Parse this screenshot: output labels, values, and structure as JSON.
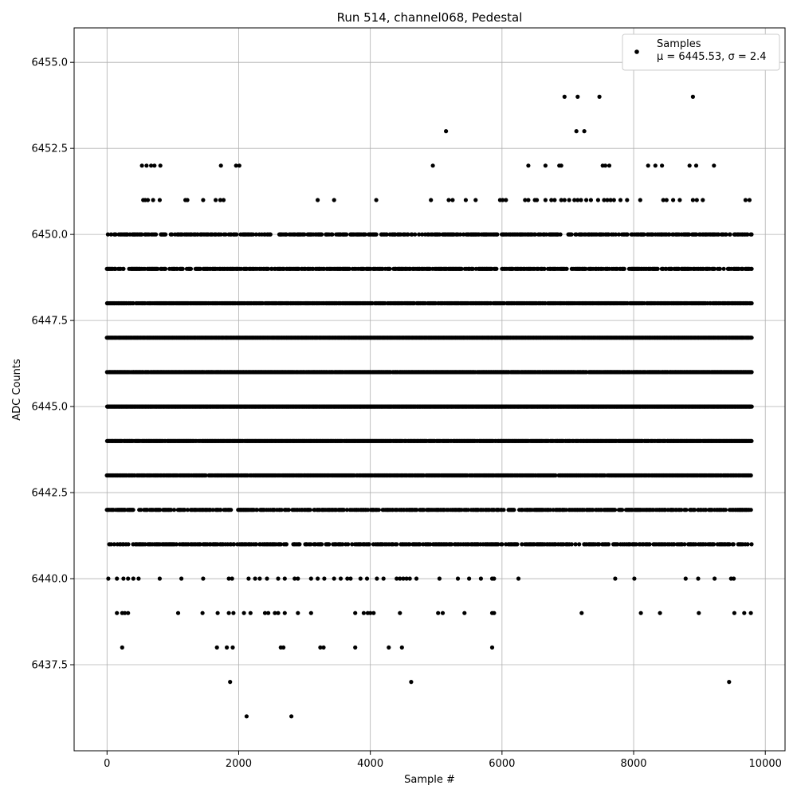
{
  "chart_data": {
    "type": "scatter",
    "title": "Run 514, channel068, Pedestal",
    "xlabel": "Sample #",
    "ylabel": "ADC Counts",
    "xlim": [
      -500,
      10300
    ],
    "ylim": [
      6435.0,
      6456.0
    ],
    "x_ticks": [
      0,
      2000,
      4000,
      6000,
      8000,
      10000
    ],
    "x_tick_labels": [
      "0",
      "2000",
      "4000",
      "6000",
      "8000",
      "10000"
    ],
    "y_ticks": [
      6437.5,
      6440.0,
      6442.5,
      6445.0,
      6447.5,
      6450.0,
      6452.5,
      6455.0
    ],
    "y_tick_labels": [
      "6437.5",
      "6440.0",
      "6442.5",
      "6445.0",
      "6447.5",
      "6450.0",
      "6452.5",
      "6455.0"
    ],
    "grid": true,
    "legend": {
      "placement": "top-right",
      "entries": [
        "Samples",
        "μ = 6445.53, σ = 2.4"
      ]
    },
    "series": [
      {
        "name": "Samples",
        "color": "#000000",
        "levels": [
          {
            "y": 6454,
            "x": [
              6950,
              7150,
              7480,
              8900
            ]
          },
          {
            "y": 6453,
            "x": [
              5150,
              7130,
              7250
            ]
          },
          {
            "y": 6452,
            "x": [
              530,
              600,
              670,
              720,
              810,
              1730,
              1960,
              2010,
              4950,
              6400,
              6660,
              6870,
              6900,
              7530,
              7570,
              7630,
              8220,
              8330,
              8430,
              8850,
              8950,
              9220
            ]
          },
          {
            "y": 6451,
            "x": [
              550,
              580,
              620,
              700,
              800,
              1190,
              1220,
              1460,
              1650,
              1720,
              1770,
              3200,
              3450,
              4090,
              4920,
              5190,
              5250,
              5450,
              5600,
              5970,
              6010,
              6060,
              6350,
              6400,
              6500,
              6530,
              6660,
              6750,
              6800,
              6900,
              6950,
              7020,
              7100,
              7150,
              7200,
              7280,
              7350,
              7460,
              7550,
              7600,
              7650,
              7700,
              7800,
              7900,
              8100,
              8450,
              8500,
              8600,
              8700,
              8900,
              8960,
              9050,
              9700,
              9760
            ]
          },
          {
            "y": 6437,
            "x": [
              1870,
              4620,
              9450
            ]
          },
          {
            "y": 6436,
            "x": [
              2120,
              2800
            ]
          }
        ],
        "dense_levels": [
          {
            "y": 6450,
            "from": 0,
            "to": 9800,
            "density": 0.55
          },
          {
            "y": 6449,
            "from": 0,
            "to": 9800,
            "density": 0.7
          },
          {
            "y": 6448,
            "from": 0,
            "to": 9800,
            "density": 0.85
          },
          {
            "y": 6447,
            "from": 0,
            "to": 9800,
            "density": 1.0
          },
          {
            "y": 6446,
            "from": 0,
            "to": 9800,
            "density": 0.95
          },
          {
            "y": 6445,
            "from": 0,
            "to": 9800,
            "density": 1.0
          },
          {
            "y": 6444,
            "from": 0,
            "to": 9800,
            "density": 0.95
          },
          {
            "y": 6443,
            "from": 0,
            "to": 9800,
            "density": 0.9
          },
          {
            "y": 6442,
            "from": 0,
            "to": 9800,
            "density": 0.6
          },
          {
            "y": 6441,
            "from": 0,
            "to": 9800,
            "density": 0.5
          }
        ],
        "sparse_levels": [
          {
            "y": 6440,
            "x": [
              20,
              150,
              250,
              320,
              400,
              480,
              800,
              1130,
              1460,
              1850,
              1900,
              2150,
              2250,
              2320,
              2430,
              2600,
              2700,
              2850,
              2900,
              3100,
              3200,
              3300,
              3450,
              3550,
              3650,
              3700,
              3850,
              3950,
              4100,
              4200,
              4400,
              4450,
              4500,
              4550,
              4600,
              4700,
              5050,
              5330,
              5500,
              5680,
              5850,
              5880,
              6250,
              7720,
              8010,
              8790,
              8980,
              9230,
              9480,
              9520
            ]
          },
          {
            "y": 6439,
            "x": [
              150,
              230,
              270,
              320,
              1080,
              1450,
              1680,
              1850,
              1920,
              2080,
              2180,
              2400,
              2450,
              2550,
              2600,
              2700,
              2900,
              3100,
              3770,
              3900,
              3960,
              4000,
              4050,
              4450,
              5030,
              5100,
              5430,
              5850,
              5880,
              7210,
              8110,
              8400,
              8990,
              9530,
              9680,
              9780
            ]
          },
          {
            "y": 6438,
            "x": [
              230,
              1670,
              1820,
              1910,
              2640,
              2680,
              3240,
              3290,
              3770,
              4280,
              4480,
              5850
            ]
          }
        ]
      }
    ]
  }
}
